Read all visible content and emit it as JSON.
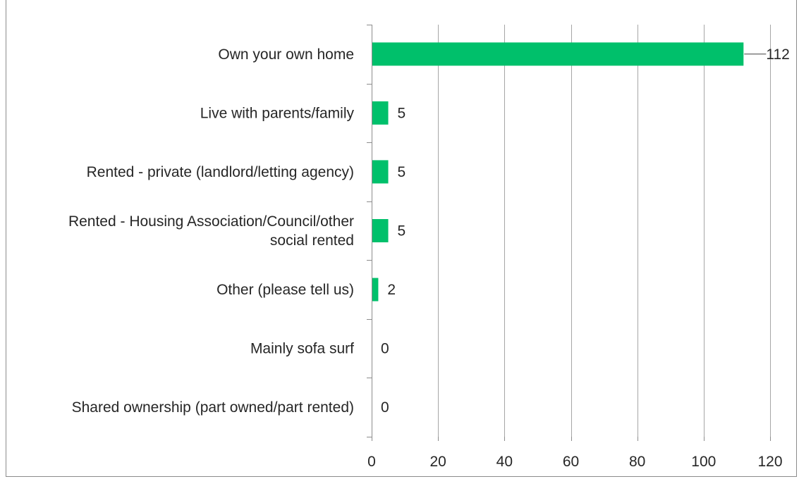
{
  "chart_data": {
    "type": "bar",
    "orientation": "horizontal",
    "title": "",
    "xlabel": "",
    "ylabel": "",
    "categories": [
      [
        "Own your own home"
      ],
      [
        "Live with parents/family"
      ],
      [
        "Rented - private (landlord/letting agency)"
      ],
      [
        "Rented - Housing Association/Council/other",
        "social rented"
      ],
      [
        "Other (please tell us)"
      ],
      [
        "Mainly sofa surf"
      ],
      [
        "Shared ownership (part owned/part rented)"
      ]
    ],
    "values": [
      112,
      5,
      5,
      5,
      2,
      0,
      0
    ],
    "xlim": [
      0,
      120
    ],
    "xticks": [
      0,
      20,
      40,
      60,
      80,
      100,
      120
    ],
    "grid": "vertical",
    "legend": "none",
    "bar_color": "#00c06b",
    "gridline_color": "#a6a6a6",
    "axis_color": "#8c8c8c"
  }
}
